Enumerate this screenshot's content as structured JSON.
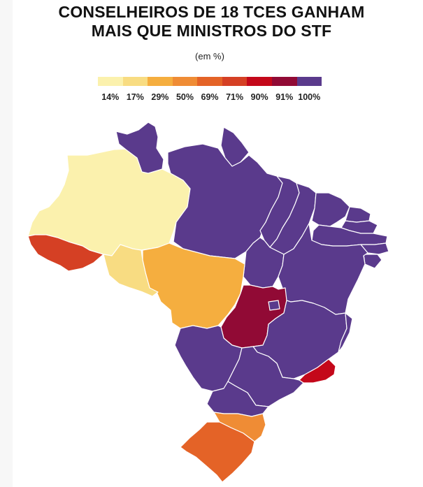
{
  "title": {
    "line1": "CONSELHEIROS DE 18 TCES GANHAM",
    "line2": "MAIS QUE MINISTROS DO STF"
  },
  "subtitle": "(em %)",
  "legend": [
    {
      "label": "14%",
      "color": "#fbf1ad"
    },
    {
      "label": "17%",
      "color": "#f8dc82"
    },
    {
      "label": "29%",
      "color": "#f5ae3f"
    },
    {
      "label": "50%",
      "color": "#ef8c35"
    },
    {
      "label": "69%",
      "color": "#e46327"
    },
    {
      "label": "71%",
      "color": "#d54024"
    },
    {
      "label": "90%",
      "color": "#c4081a"
    },
    {
      "label": "91%",
      "color": "#910a35"
    },
    {
      "label": "100%",
      "color": "#5a3a8c"
    }
  ],
  "states": [
    {
      "id": "AM",
      "value": 14,
      "color": "#fbf1ad"
    },
    {
      "id": "RO",
      "value": 17,
      "color": "#f8dc82"
    },
    {
      "id": "MT",
      "value": 29,
      "color": "#f5ae3f"
    },
    {
      "id": "SC",
      "value": 50,
      "color": "#ef8c35"
    },
    {
      "id": "RS",
      "value": 69,
      "color": "#e46327"
    },
    {
      "id": "AC",
      "value": 71,
      "color": "#d54024"
    },
    {
      "id": "RJ",
      "value": 90,
      "color": "#c4081a"
    },
    {
      "id": "GO",
      "value": 91,
      "color": "#910a35"
    },
    {
      "id": "RR",
      "value": 100,
      "color": "#5a3a8c"
    },
    {
      "id": "PA",
      "value": 100,
      "color": "#5a3a8c"
    },
    {
      "id": "AP",
      "value": 100,
      "color": "#5a3a8c"
    },
    {
      "id": "MA",
      "value": 100,
      "color": "#5a3a8c"
    },
    {
      "id": "PI",
      "value": 100,
      "color": "#5a3a8c"
    },
    {
      "id": "CE",
      "value": 100,
      "color": "#5a3a8c"
    },
    {
      "id": "RN",
      "value": 100,
      "color": "#5a3a8c"
    },
    {
      "id": "PB",
      "value": 100,
      "color": "#5a3a8c"
    },
    {
      "id": "PE",
      "value": 100,
      "color": "#5a3a8c"
    },
    {
      "id": "AL",
      "value": 100,
      "color": "#5a3a8c"
    },
    {
      "id": "SE",
      "value": 100,
      "color": "#5a3a8c"
    },
    {
      "id": "BA",
      "value": 100,
      "color": "#5a3a8c"
    },
    {
      "id": "TO",
      "value": 100,
      "color": "#5a3a8c"
    },
    {
      "id": "MG",
      "value": 100,
      "color": "#5a3a8c"
    },
    {
      "id": "ES",
      "value": 100,
      "color": "#5a3a8c"
    },
    {
      "id": "SP",
      "value": 100,
      "color": "#5a3a8c"
    },
    {
      "id": "MS",
      "value": 100,
      "color": "#5a3a8c"
    },
    {
      "id": "PR",
      "value": 100,
      "color": "#5a3a8c"
    },
    {
      "id": "DF",
      "value": 100,
      "color": "#5a3a8c"
    }
  ]
}
